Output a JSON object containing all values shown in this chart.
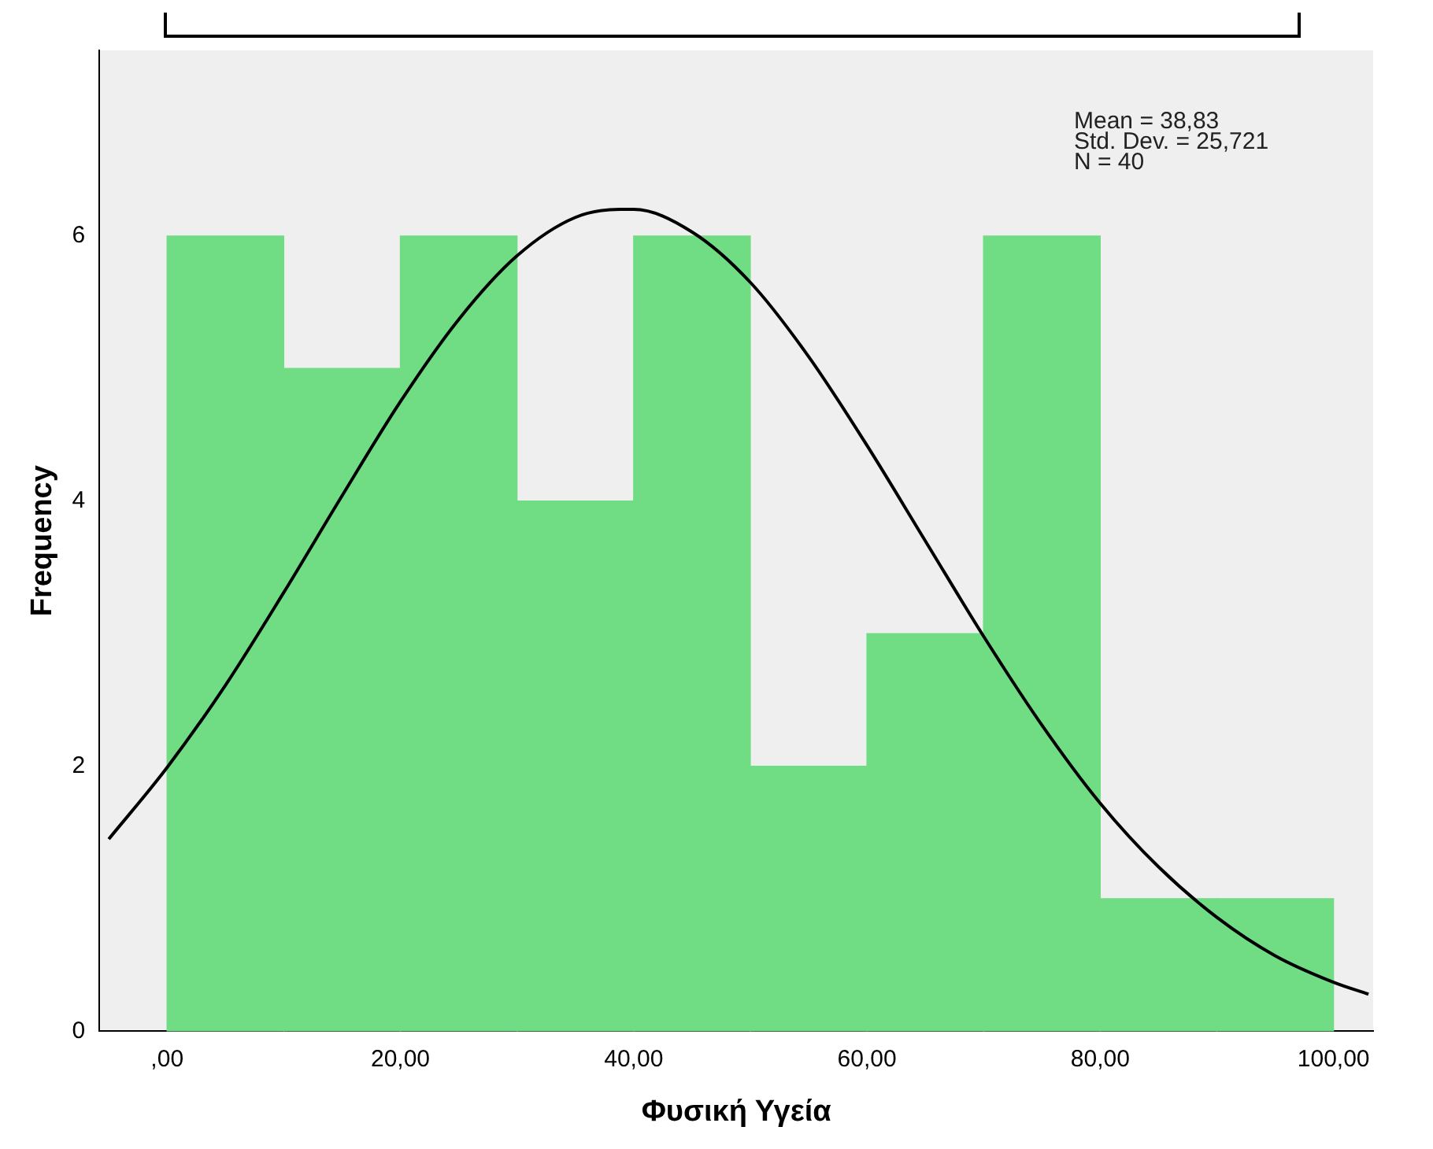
{
  "chart_data": {
    "type": "histogram",
    "xlabel": "Φυσική Υγεία",
    "ylabel": "Frequency",
    "bins": [
      0,
      10,
      20,
      30,
      40,
      50,
      60,
      70,
      80,
      90,
      100
    ],
    "values": [
      6,
      5,
      6,
      4,
      6,
      2,
      3,
      6,
      1,
      1
    ],
    "color": "#70dc84",
    "series": [
      {
        "type": "line",
        "color": "#000000",
        "x": [
          -5,
          0,
          5,
          10,
          15,
          20,
          25,
          30,
          35,
          38.83,
          40,
          45,
          50,
          55,
          60,
          65,
          70,
          75,
          80,
          85,
          90,
          95,
          100,
          103
        ],
        "values": [
          1.45,
          1.99,
          2.61,
          3.31,
          4.04,
          4.75,
          5.37,
          5.85,
          6.14,
          6.2,
          6.2,
          6.03,
          5.65,
          5.09,
          4.42,
          3.7,
          2.98,
          2.31,
          1.72,
          1.24,
          0.86,
          0.57,
          0.37,
          0.28
        ]
      }
    ],
    "xlim": [
      -5.8,
      103.4
    ],
    "ylim": [
      0,
      7.4
    ],
    "xticks": [
      {
        "value": 0,
        "label": ",00"
      },
      {
        "value": 20,
        "label": "20,00"
      },
      {
        "value": 40,
        "label": "40,00"
      },
      {
        "value": 60,
        "label": "60,00"
      },
      {
        "value": 80,
        "label": "80,00"
      },
      {
        "value": 100,
        "label": "100,00"
      }
    ],
    "yticks": [
      0,
      2,
      4,
      6
    ],
    "annotations": [
      "Mean = 38,83",
      "Std. Dev. = 25,721",
      "N = 40"
    ],
    "grid": false,
    "legend": false,
    "marker": "none",
    "line_style": "solid"
  }
}
